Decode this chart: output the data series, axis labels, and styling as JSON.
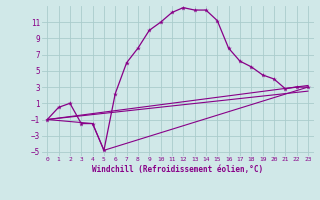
{
  "xlabel": "Windchill (Refroidissement éolien,°C)",
  "bg_color": "#d0e8e8",
  "grid_color": "#aacccc",
  "line_color": "#880088",
  "xlim": [
    -0.5,
    23.5
  ],
  "ylim": [
    -5.5,
    13.0
  ],
  "xticks": [
    0,
    1,
    2,
    3,
    4,
    5,
    6,
    7,
    8,
    9,
    10,
    11,
    12,
    13,
    14,
    15,
    16,
    17,
    18,
    19,
    20,
    21,
    22,
    23
  ],
  "yticks": [
    -5,
    -3,
    -1,
    1,
    3,
    5,
    7,
    9,
    11
  ],
  "line1_x": [
    0,
    1,
    2,
    3,
    4,
    5,
    6,
    7,
    8,
    9,
    10,
    11,
    12,
    13,
    14,
    15,
    16,
    17,
    18,
    19,
    20,
    21,
    22,
    23
  ],
  "line1_y": [
    -1.0,
    0.5,
    1.0,
    -1.5,
    -1.5,
    -4.8,
    2.2,
    6.0,
    7.8,
    10.0,
    11.0,
    12.2,
    12.8,
    12.5,
    12.5,
    11.2,
    7.8,
    6.2,
    5.5,
    4.5,
    4.0,
    2.8,
    3.0,
    3.0
  ],
  "line2_x": [
    0,
    23
  ],
  "line2_y": [
    -1.0,
    2.5
  ],
  "line3_x": [
    0,
    23
  ],
  "line3_y": [
    -1.0,
    3.2
  ],
  "line4_x": [
    0,
    4,
    5,
    23
  ],
  "line4_y": [
    -1.0,
    -1.5,
    -4.8,
    3.0
  ]
}
